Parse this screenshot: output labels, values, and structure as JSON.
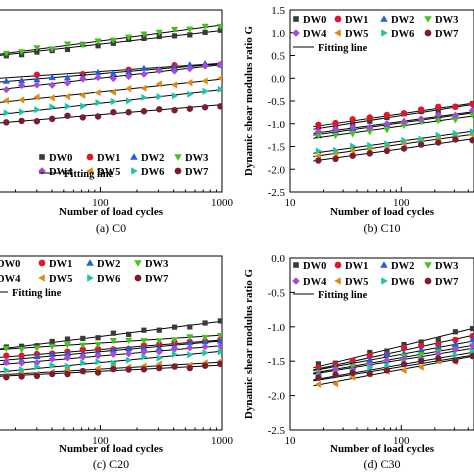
{
  "colors": {
    "DW0": "#3a3a3a",
    "DW1": "#e0162b",
    "DW2": "#1f5fe0",
    "DW3": "#45c21f",
    "DW4": "#a64bd6",
    "DW5": "#e08a12",
    "DW6": "#19c7a8",
    "DW7": "#7a1e2e"
  },
  "legend": {
    "fit_label": "Fitting line"
  },
  "chart_data": [
    {
      "id": "C0",
      "type": "scatter",
      "caption": "(a) C0",
      "xlabel": "Number of load cycles",
      "ylabel": "",
      "xscale": "log",
      "xlim": [
        7,
        1000
      ],
      "xticks": [
        100,
        1000
      ],
      "xticklabels": [
        "100",
        "1000"
      ],
      "ylim": [
        -2.5,
        1.5
      ],
      "yticks": [],
      "yticklabels": [],
      "legend_position": "bottom-right",
      "series": [
        {
          "name": "DW0",
          "marker": "square",
          "intercept": 0.75,
          "slope": 0.3,
          "n": 16
        },
        {
          "name": "DW1",
          "marker": "circle",
          "intercept": 0.15,
          "slope": 0.18,
          "n": 6
        },
        {
          "name": "DW2",
          "marker": "triangle-up",
          "intercept": 0.1,
          "slope": 0.22,
          "n": 16
        },
        {
          "name": "DW3",
          "marker": "triangle-down",
          "intercept": 0.82,
          "slope": 0.35,
          "n": 16
        },
        {
          "name": "DW4",
          "marker": "diamond",
          "intercept": 0.0,
          "slope": 0.3,
          "n": 16
        },
        {
          "name": "DW5",
          "marker": "triangle-left",
          "intercept": -0.3,
          "slope": 0.28,
          "n": 16
        },
        {
          "name": "DW6",
          "marker": "triangle-right",
          "intercept": -0.55,
          "slope": 0.3,
          "n": 16
        },
        {
          "name": "DW7",
          "marker": "circle",
          "intercept": -0.8,
          "slope": 0.22,
          "n": 16
        }
      ]
    },
    {
      "id": "C10",
      "type": "scatter",
      "caption": "(b) C10",
      "xlabel": "Number of load cycles",
      "ylabel": "Dynamic shear modulus ratio G",
      "xscale": "log",
      "xlim": [
        10,
        450
      ],
      "xticks": [
        10,
        100
      ],
      "xticklabels": [
        "10",
        "100"
      ],
      "ylim": [
        -2.5,
        1.5
      ],
      "yticks": [
        -2.5,
        -2.0,
        -1.5,
        -1.0,
        -0.5,
        0.0,
        0.5,
        1.0,
        1.5
      ],
      "yticklabels": [
        "-2.5",
        "-2.0",
        "-1.5",
        "-1.0",
        "-0.5",
        "0.0",
        "0.5",
        "1.0",
        "1.5"
      ],
      "legend_position": "top-right",
      "series": [
        {
          "name": "DW0",
          "marker": "square",
          "intercept": -0.82,
          "slope": 0.38,
          "n": 10
        },
        {
          "name": "DW1",
          "marker": "circle",
          "intercept": -0.78,
          "slope": 0.36,
          "n": 10
        },
        {
          "name": "DW2",
          "marker": "triangle-up",
          "intercept": -0.98,
          "slope": 0.34,
          "n": 10
        },
        {
          "name": "DW3",
          "marker": "triangle-down",
          "intercept": -1.05,
          "slope": 0.34,
          "n": 10
        },
        {
          "name": "DW4",
          "marker": "diamond",
          "intercept": -0.95,
          "slope": 0.33,
          "n": 10
        },
        {
          "name": "DW5",
          "marker": "triangle-left",
          "intercept": -1.45,
          "slope": 0.34,
          "n": 10
        },
        {
          "name": "DW6",
          "marker": "triangle-right",
          "intercept": -1.38,
          "slope": 0.34,
          "n": 10
        },
        {
          "name": "DW7",
          "marker": "circle",
          "intercept": -1.55,
          "slope": 0.34,
          "n": 10
        }
      ]
    },
    {
      "id": "C20",
      "type": "scatter",
      "caption": "(c) C20",
      "xlabel": "Number of load cycles",
      "ylabel": "",
      "xscale": "log",
      "xlim": [
        7,
        1000
      ],
      "xticks": [
        100,
        1000
      ],
      "xticklabels": [
        "100",
        "1000"
      ],
      "ylim": [
        -2.5,
        1.5
      ],
      "yticks": [],
      "yticklabels": [],
      "legend_position": "top-left",
      "series": [
        {
          "name": "DW0",
          "marker": "square",
          "intercept": -0.35,
          "slope": 0.35,
          "n": 16
        },
        {
          "name": "DW1",
          "marker": "circle",
          "intercept": -0.65,
          "slope": 0.22,
          "n": 16
        },
        {
          "name": "DW2",
          "marker": "triangle-up",
          "intercept": -0.7,
          "slope": 0.25,
          "n": 16
        },
        {
          "name": "DW3",
          "marker": "triangle-down",
          "intercept": -0.5,
          "slope": 0.18,
          "n": 16
        },
        {
          "name": "DW4",
          "marker": "diamond",
          "intercept": -0.8,
          "slope": 0.24,
          "n": 16
        },
        {
          "name": "DW5",
          "marker": "triangle-left",
          "intercept": -1.1,
          "slope": 0.16,
          "n": 16
        },
        {
          "name": "DW6",
          "marker": "triangle-right",
          "intercept": -0.95,
          "slope": 0.26,
          "n": 16
        },
        {
          "name": "DW7",
          "marker": "circle",
          "intercept": -1.15,
          "slope": 0.14,
          "n": 16
        }
      ]
    },
    {
      "id": "C30",
      "type": "scatter",
      "caption": "(d) C30",
      "xlabel": "Number of load cycles",
      "ylabel": "Dynamic shear modulus ratio G",
      "xscale": "log",
      "xlim": [
        10,
        450
      ],
      "xticks": [
        10,
        100
      ],
      "xticklabels": [
        "10",
        "100"
      ],
      "ylim": [
        -2.5,
        0.0
      ],
      "yticks": [
        -2.5,
        -2.0,
        -1.5,
        -1.0,
        -0.5,
        0.0
      ],
      "yticklabels": [
        "-2.5",
        "-2.0",
        "-1.5",
        "-1.0",
        "-0.5",
        "0.0"
      ],
      "legend_position": "top-right",
      "series": [
        {
          "name": "DW0",
          "marker": "square",
          "intercept": -1.28,
          "slope": 0.4,
          "n": 10
        },
        {
          "name": "DW1",
          "marker": "circle",
          "intercept": -1.35,
          "slope": 0.35,
          "n": 10
        },
        {
          "name": "DW2",
          "marker": "triangle-up",
          "intercept": -1.4,
          "slope": 0.3,
          "n": 10
        },
        {
          "name": "DW3",
          "marker": "triangle-down",
          "intercept": -1.45,
          "slope": 0.28,
          "n": 10
        },
        {
          "name": "DW4",
          "marker": "diamond",
          "intercept": -1.48,
          "slope": 0.26,
          "n": 10
        },
        {
          "name": "DW5",
          "marker": "triangle-left",
          "intercept": -1.62,
          "slope": 0.3,
          "n": 10
        },
        {
          "name": "DW6",
          "marker": "triangle-right",
          "intercept": -1.55,
          "slope": 0.28,
          "n": 10
        },
        {
          "name": "DW7",
          "marker": "circle",
          "intercept": -1.58,
          "slope": 0.26,
          "n": 10
        }
      ]
    }
  ]
}
